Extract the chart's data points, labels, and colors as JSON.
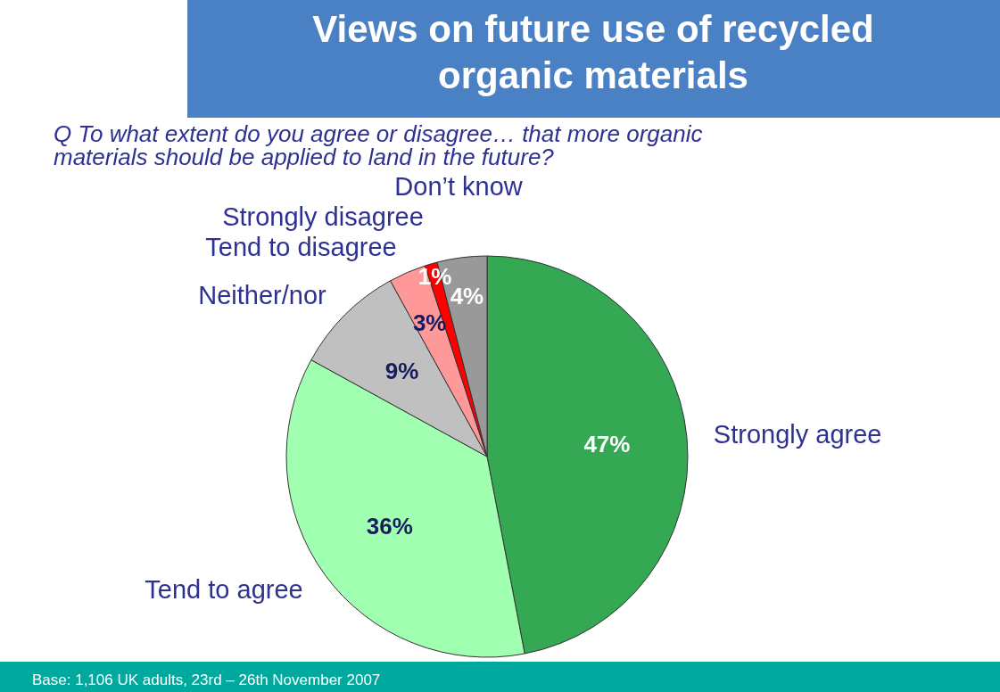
{
  "chart_data": {
    "type": "pie",
    "title": "Views on future use of recycled organic materials",
    "subtitle": "Q To what extent do you agree or disagree… that more organic materials should be applied to land in the future?",
    "categories": [
      "Strongly agree",
      "Tend to agree",
      "Neither/nor",
      "Tend to disagree",
      "Strongly disagree",
      "Don’t know"
    ],
    "values": [
      47,
      36,
      9,
      3,
      1,
      4
    ],
    "value_labels": [
      "47%",
      "36%",
      "9%",
      "3%",
      "1%",
      "4%"
    ],
    "colors": [
      "#35a853",
      "#a0ffb0",
      "#c0c0c0",
      "#ff9999",
      "#ff0000",
      "#999999"
    ],
    "annotations": [
      "Base: 1,106 UK adults, 23rd – 26th November 2007"
    ]
  }
}
